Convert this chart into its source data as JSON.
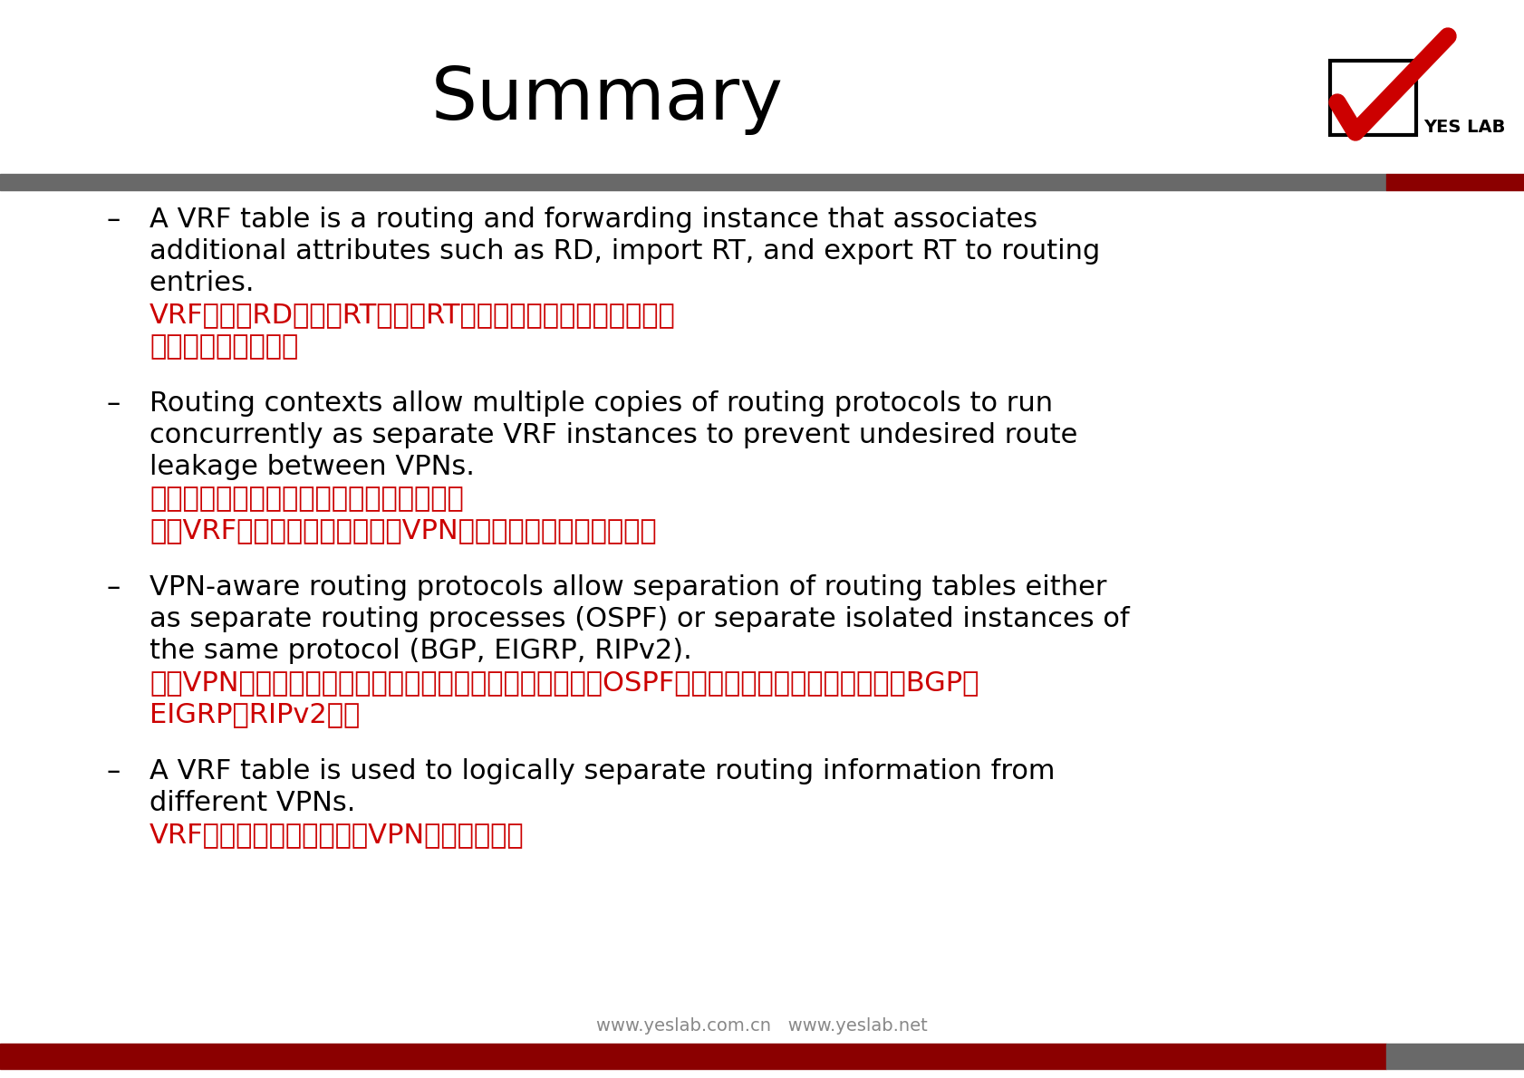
{
  "title": "Summary",
  "title_fontsize": 58,
  "title_color": "#000000",
  "background_color": "#ffffff",
  "header_bar_gray_color": "#696969",
  "header_bar_red_color": "#8b0000",
  "footer_bar_red_color": "#8b0000",
  "footer_bar_gray_color": "#696969",
  "red_color": "#cc0000",
  "black_color": "#000000",
  "en_fontsize": 22,
  "cn_fontsize": 22,
  "bullet_en_lines": [
    [
      "A VRF table is a routing and forwarding instance that associates",
      "additional attributes such as RD, import RT, and export RT to routing",
      "entries. "
    ],
    [
      "Routing contexts allow multiple copies of routing protocols to run",
      "concurrently as separate VRF instances to prevent undesired route",
      "leakage between VPNs."
    ],
    [
      "VPN-aware routing protocols allow separation of routing tables either",
      "as separate routing processes (OSPF) or separate isolated instances of",
      "the same protocol (BGP, EIGRP, RIPv2)."
    ],
    [
      "A VRF table is used to logically separate routing information from",
      "different VPNs. "
    ]
  ],
  "bullet_cn_lines": [
    [
      "VRF表是将RD，导入RT和导出RT等附加属性与路由条目相关联",
      "的路由和转发实例。"
    ],
    [
      "路由上下文允许路由协议的多个副本作为单",
      "独的VRF实例同时运行，以防止VPN之间的不必要的路由泄漏。"
    ],
    [
      "支持VPN的路由协议允许将路由表分离为单独的路由进程（OSPF）或相同协议的单独隔离实例（BGP，",
      "EIGRP，RIPv2）。"
    ],
    [
      "VRF表用于逻辑上分离不同VPN的路由信息。"
    ]
  ],
  "footer_text": "www.yeslab.com.cn   www.yeslab.net",
  "footer_text_color": "#888888",
  "footer_fontsize": 14,
  "yeslab_text": "YES LAB"
}
